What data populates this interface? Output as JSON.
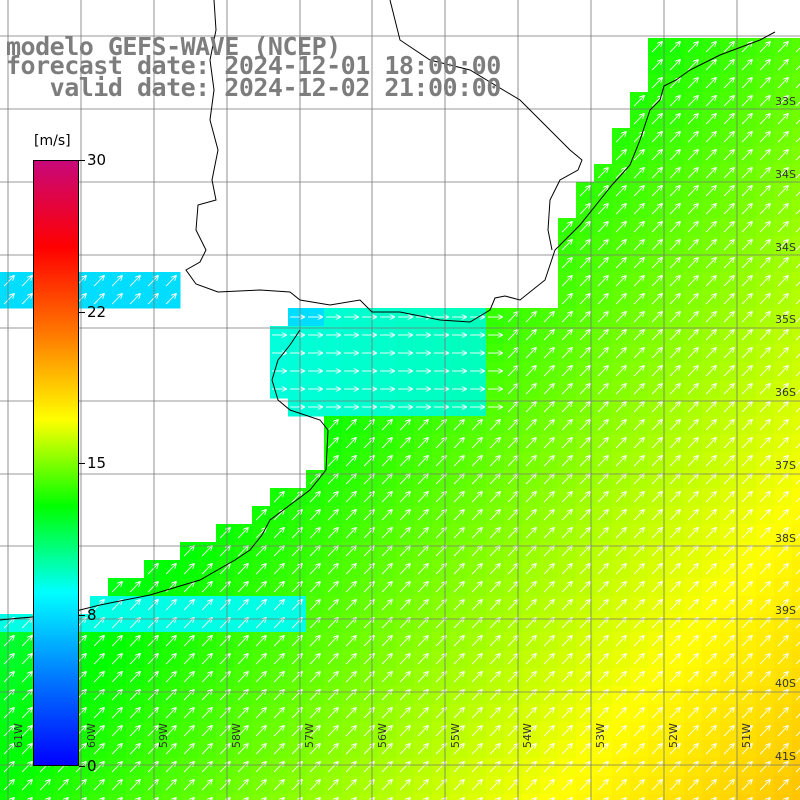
{
  "title": {
    "line1": "modelo GEFS-WAVE (NCEP)",
    "line2": "forecast date: 2024-12-01 18:00:00",
    "line3": "   valid date: 2024-12-02 21:00:00"
  },
  "colorbar": {
    "unit": "[m/s]",
    "ticks": [
      "30",
      "22",
      "15",
      "8",
      "0"
    ],
    "colors": [
      "#c8087a",
      "#ff0000",
      "#ff7800",
      "#ffff00",
      "#00ff00",
      "#00ffff",
      "#0078ff",
      "#0000ff"
    ]
  },
  "grid": {
    "lat_labels": [
      "33S",
      "34S",
      "35S",
      "36S",
      "37S",
      "38S",
      "39S",
      "40S",
      "41S"
    ],
    "lon_labels": [
      "61W",
      "60W",
      "59W",
      "58W",
      "57W",
      "56W",
      "55W",
      "54W",
      "53W",
      "52W",
      "51W"
    ]
  }
}
